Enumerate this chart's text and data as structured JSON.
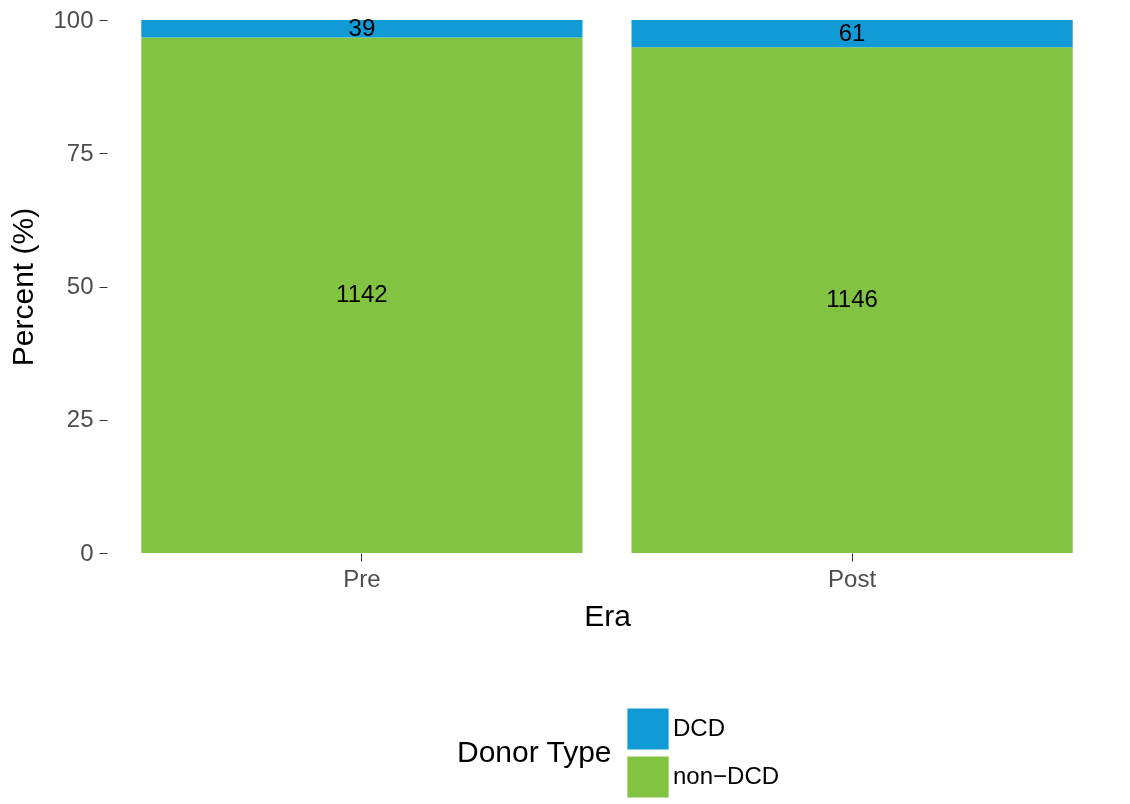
{
  "chart_data": {
    "type": "bar",
    "stacked": true,
    "xlabel": "Era",
    "ylabel": "Percent (%)",
    "legend_title": "Donor Type",
    "legend": "bottom",
    "grid": false,
    "categories": [
      "Pre",
      "Post"
    ],
    "series": [
      {
        "name": "non−DCD",
        "color": "#82c341",
        "values": [
          96.7,
          94.9
        ]
      },
      {
        "name": "DCD",
        "color": "#129ad7",
        "values": [
          3.3,
          5.1
        ]
      }
    ],
    "annotations": [
      "1142",
      "1146",
      "39",
      "61"
    ],
    "ylim": [
      0,
      100
    ],
    "yticks": [
      0,
      25,
      50,
      75,
      100
    ]
  }
}
